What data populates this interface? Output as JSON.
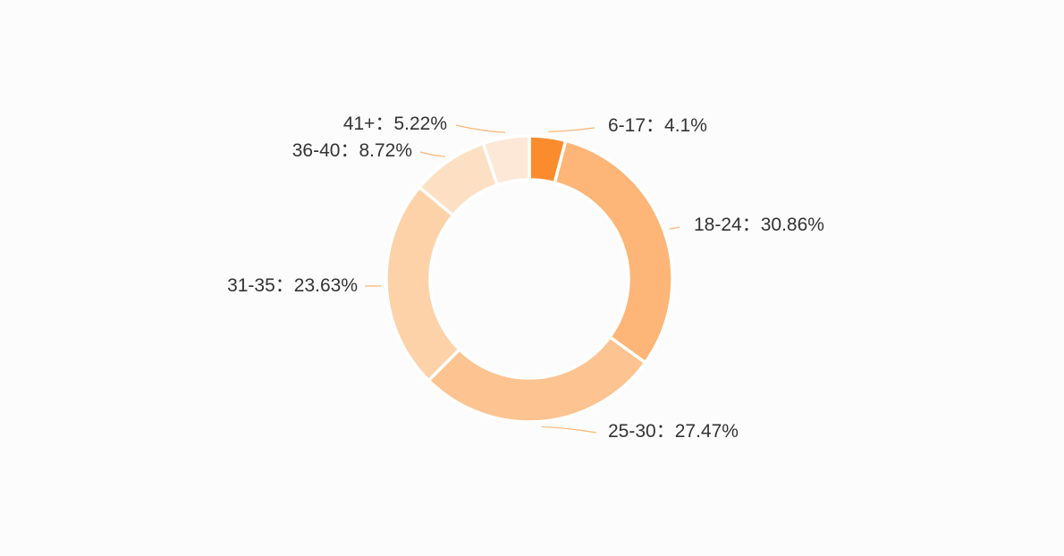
{
  "chart_data": {
    "type": "pie",
    "variant": "donut",
    "categories": [
      "6-17",
      "18-24",
      "25-30",
      "31-35",
      "36-40",
      "41+"
    ],
    "values": [
      4.1,
      30.86,
      27.47,
      23.63,
      8.72,
      5.22
    ],
    "labels": [
      "6-17：4.1%",
      "18-24：30.86%",
      "25-30：27.47%",
      "31-35：23.63%",
      "36-40：8.72%",
      "41+：5.22%"
    ],
    "colors": [
      "#fb8c2e",
      "#fdb677",
      "#fdc390",
      "#fdd2a9",
      "#fde0c4",
      "#fde7d6"
    ],
    "leader_line_color": "#fdb677",
    "start_angle": "top",
    "direction": "clockwise",
    "legend": "none",
    "grid": false
  }
}
